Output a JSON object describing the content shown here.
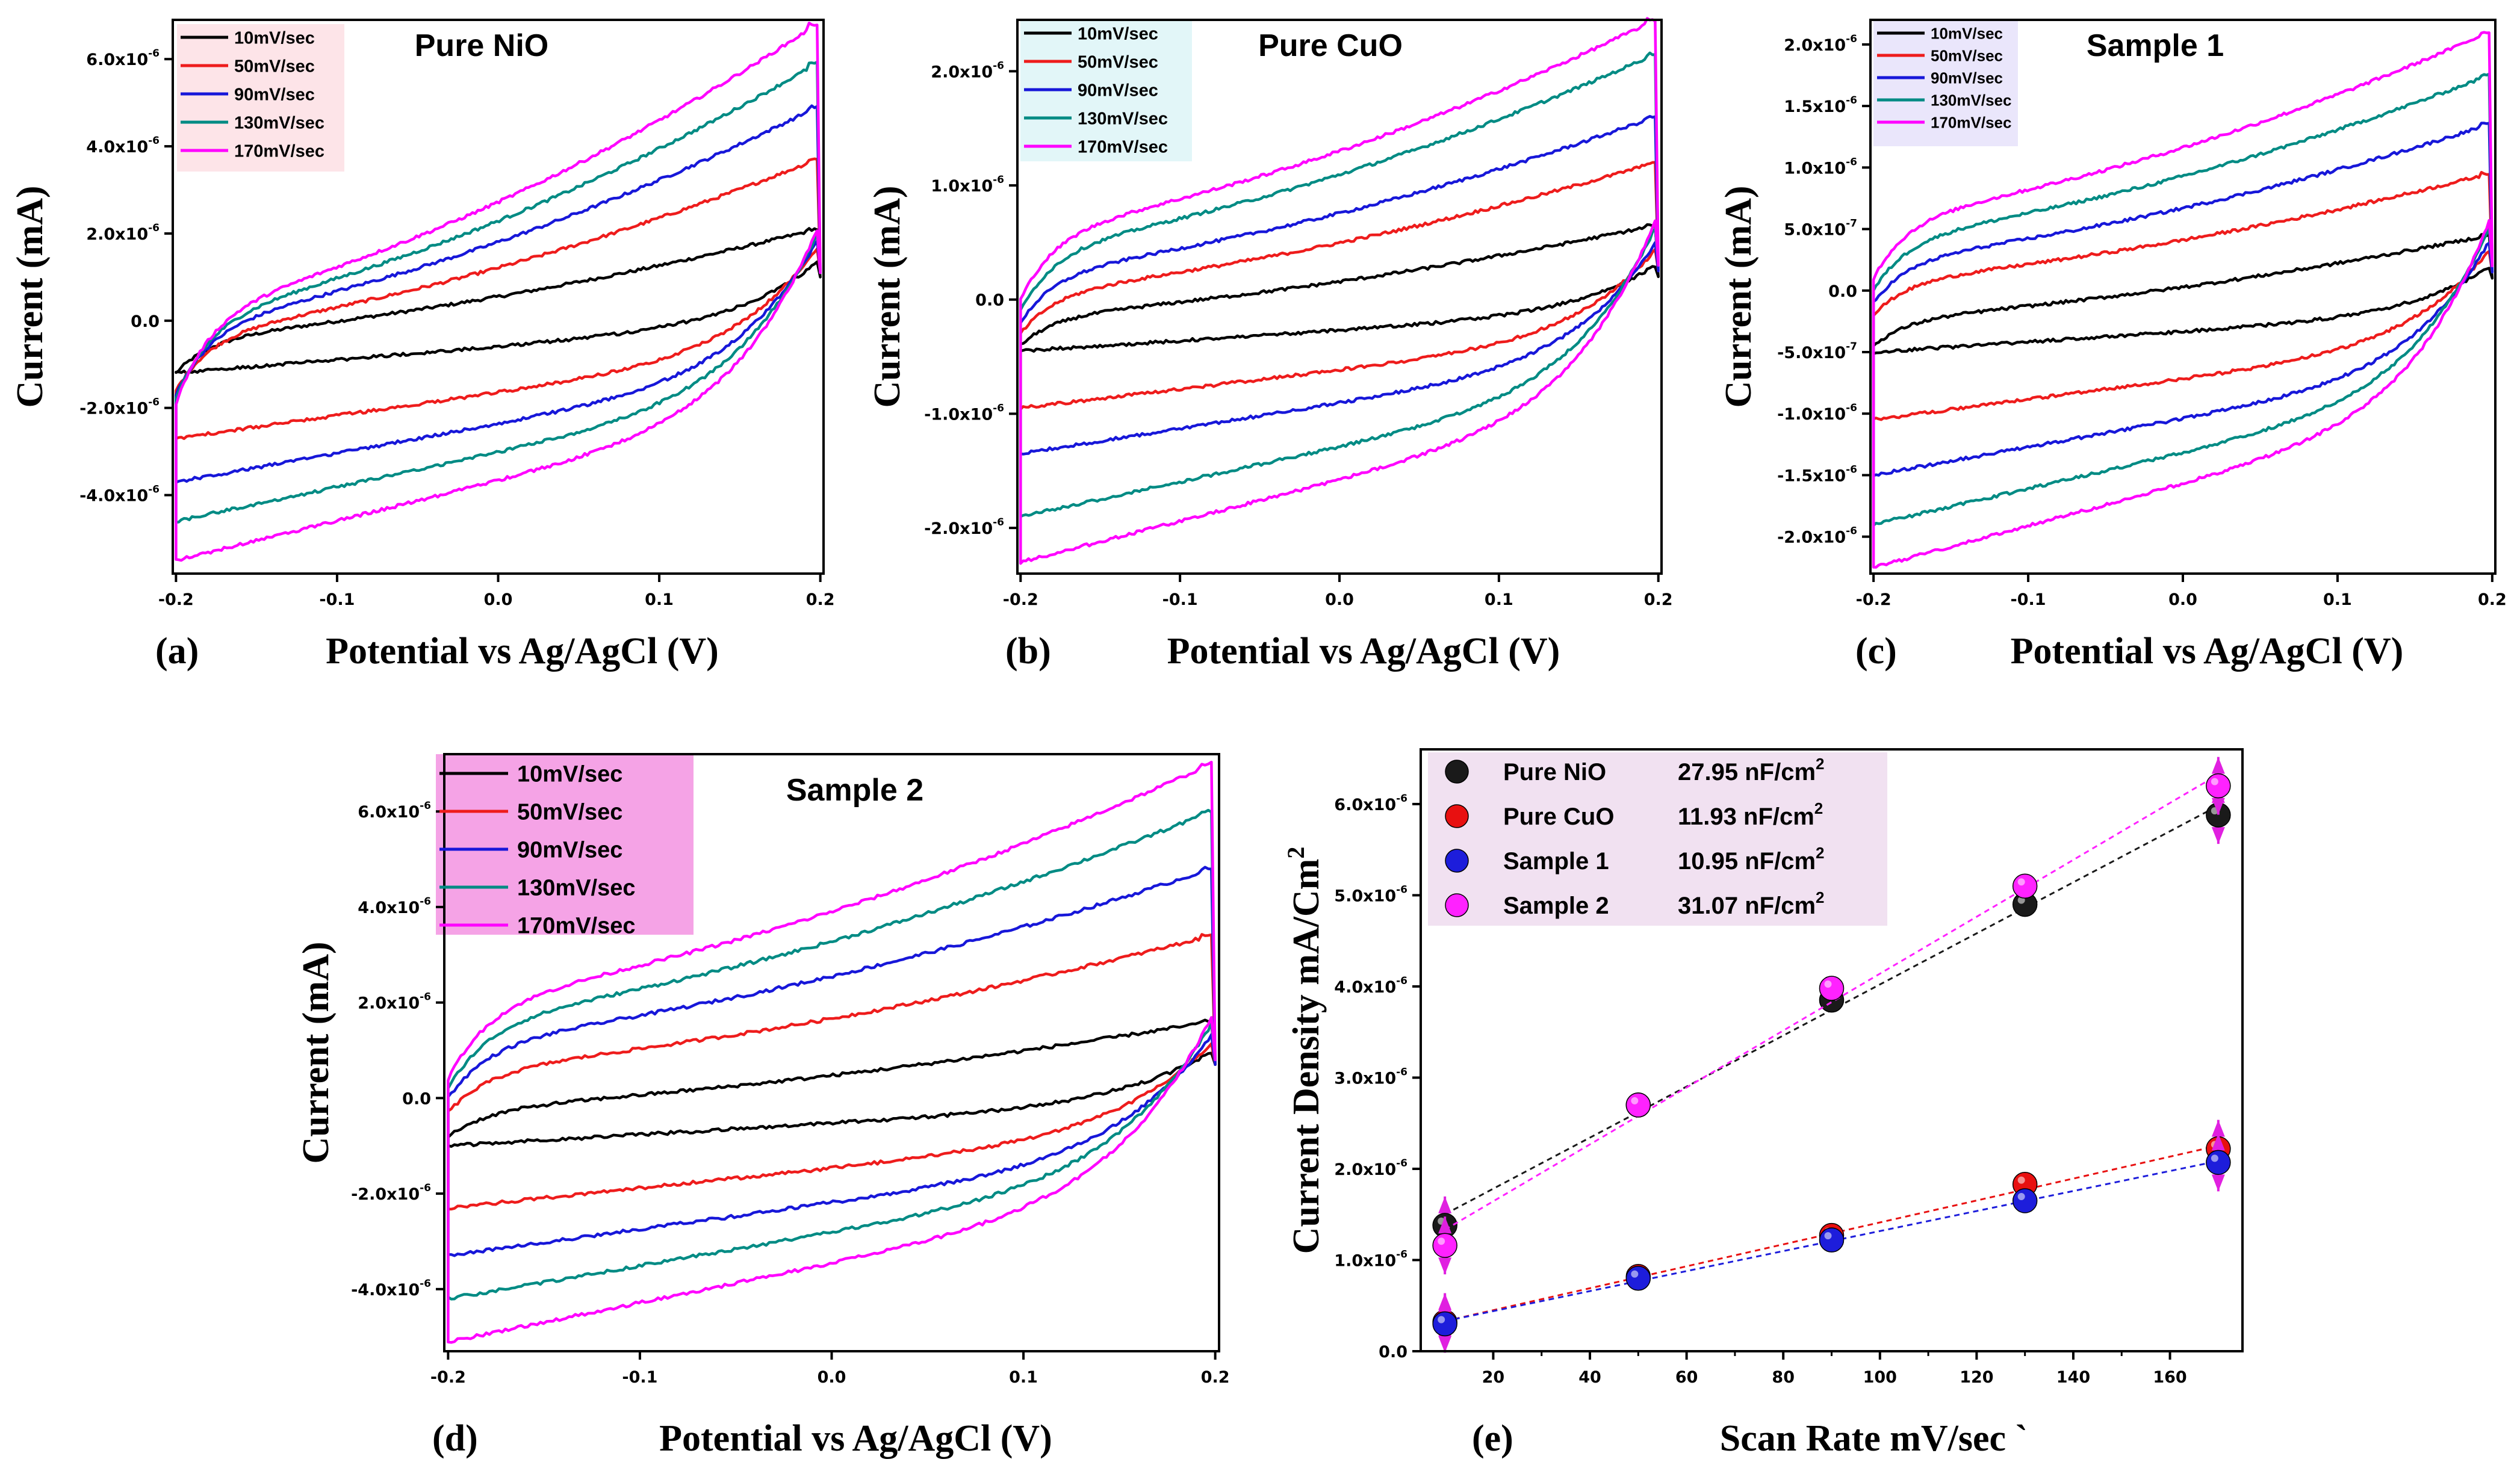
{
  "chart_data": [
    {
      "panel": "(a)",
      "type": "line",
      "title": "Pure NiO",
      "xlabel": "Potential vs Ag/AgCl (V)",
      "ylabel": "Current (mA)",
      "xlim": [
        -0.202,
        0.202
      ],
      "ylim": [
        -5.8e-06,
        6.9e-06
      ],
      "x_ticks": [
        "-0.2",
        "-0.1",
        "0.0",
        "0.1",
        "0.2"
      ],
      "y_ticks": [
        {
          "m": "-4.0x10",
          "e": "-6",
          "v": -4e-06
        },
        {
          "m": "-2.0x10",
          "e": "-6",
          "v": -2e-06
        },
        {
          "m": "0.0",
          "e": "",
          "v": 0
        },
        {
          "m": "2.0x10",
          "e": "-6",
          "v": 2e-06
        },
        {
          "m": "4.0x10",
          "e": "-6",
          "v": 4e-06
        },
        {
          "m": "6.0x10",
          "e": "-6",
          "v": 6e-06
        }
      ],
      "legend_bg": "#fde4e8",
      "series": [
        {
          "name": "10mV/sec",
          "color": "#000000",
          "upper_start": -1.2e-06,
          "upper_end": 2.1e-06,
          "lower_start": -1.2e-06,
          "lower_end": 1e-06
        },
        {
          "name": "50mV/sec",
          "color": "#ee1c1c",
          "upper_start": -1.6e-06,
          "upper_end": 3.7e-06,
          "lower_start": -2.7e-06,
          "lower_end": 1.1e-06
        },
        {
          "name": "90mV/sec",
          "color": "#1717d9",
          "upper_start": -1.7e-06,
          "upper_end": 4.9e-06,
          "lower_start": -3.7e-06,
          "lower_end": 1.1e-06
        },
        {
          "name": "130mV/sec",
          "color": "#008b84",
          "upper_start": -1.8e-06,
          "upper_end": 5.9e-06,
          "lower_start": -4.6e-06,
          "lower_end": 1.1e-06
        },
        {
          "name": "170mV/sec",
          "color": "#ff00ff",
          "upper_start": -1.9e-06,
          "upper_end": 6.8e-06,
          "lower_start": -5.5e-06,
          "lower_end": 1.1e-06
        }
      ]
    },
    {
      "panel": "(b)",
      "type": "line",
      "title": "Pure CuO",
      "xlabel": "Potential vs Ag/AgCl (V)",
      "ylabel": "Current (mA)",
      "xlim": [
        -0.202,
        0.202
      ],
      "ylim": [
        -2.4e-06,
        2.45e-06
      ],
      "x_ticks": [
        "-0.2",
        "-0.1",
        "0.0",
        "0.1",
        "0.2"
      ],
      "y_ticks": [
        {
          "m": "-2.0x10",
          "e": "-6",
          "v": -2e-06
        },
        {
          "m": "-1.0x10",
          "e": "-6",
          "v": -1e-06
        },
        {
          "m": "0.0",
          "e": "",
          "v": 0
        },
        {
          "m": "1.0x10",
          "e": "-6",
          "v": 1e-06
        },
        {
          "m": "2.0x10",
          "e": "-6",
          "v": 2e-06
        }
      ],
      "legend_bg": "#e2f6f8",
      "series": [
        {
          "name": "10mV/sec",
          "color": "#000000",
          "upper_start": -4e-07,
          "upper_end": 6.5e-07,
          "lower_start": -4.5e-07,
          "lower_end": 2e-07
        },
        {
          "name": "50mV/sec",
          "color": "#ee1c1c",
          "upper_start": -3e-07,
          "upper_end": 1.2e-06,
          "lower_start": -9.5e-07,
          "lower_end": 2.5e-07
        },
        {
          "name": "90mV/sec",
          "color": "#1717d9",
          "upper_start": -2e-07,
          "upper_end": 1.6e-06,
          "lower_start": -1.35e-06,
          "lower_end": 2.5e-07
        },
        {
          "name": "130mV/sec",
          "color": "#008b84",
          "upper_start": -1e-07,
          "upper_end": 2.15e-06,
          "lower_start": -1.9e-06,
          "lower_end": 3e-07
        },
        {
          "name": "170mV/sec",
          "color": "#ff00ff",
          "upper_start": 0.0,
          "upper_end": 2.45e-06,
          "lower_start": -2.3e-06,
          "lower_end": 3e-07
        }
      ]
    },
    {
      "panel": "(c)",
      "type": "line",
      "title": "Sample 1",
      "xlabel": "Potential vs Ag/AgCl (V)",
      "ylabel": "Current (mA)",
      "xlim": [
        -0.202,
        0.202
      ],
      "ylim": [
        -2.3e-06,
        2.2e-06
      ],
      "x_ticks": [
        "-0.2",
        "-0.1",
        "0.0",
        "0.1",
        "0.2"
      ],
      "y_ticks": [
        {
          "m": "-2.0x10",
          "e": "-6",
          "v": -2e-06
        },
        {
          "m": "-1.5x10",
          "e": "-6",
          "v": -1.5e-06
        },
        {
          "m": "-1.0x10",
          "e": "-6",
          "v": -1e-06
        },
        {
          "m": "-5.0x10",
          "e": "-7",
          "v": -5e-07
        },
        {
          "m": "0.0",
          "e": "",
          "v": 0
        },
        {
          "m": "5.0x10",
          "e": "-7",
          "v": 5e-07
        },
        {
          "m": "1.0x10",
          "e": "-6",
          "v": 1e-06
        },
        {
          "m": "1.5x10",
          "e": "-6",
          "v": 1.5e-06
        },
        {
          "m": "2.0x10",
          "e": "-6",
          "v": 2e-06
        }
      ],
      "legend_bg": "#eae6fb",
      "series": [
        {
          "name": "10mV/sec",
          "color": "#000000",
          "upper_start": -4.5e-07,
          "upper_end": 4.5e-07,
          "lower_start": -5e-07,
          "lower_end": 1e-07
        },
        {
          "name": "50mV/sec",
          "color": "#ee1c1c",
          "upper_start": -2e-07,
          "upper_end": 9.5e-07,
          "lower_start": -1.05e-06,
          "lower_end": 1.5e-07
        },
        {
          "name": "90mV/sec",
          "color": "#1717d9",
          "upper_start": -1e-07,
          "upper_end": 1.35e-06,
          "lower_start": -1.5e-06,
          "lower_end": 1.5e-07
        },
        {
          "name": "130mV/sec",
          "color": "#008b84",
          "upper_start": 0.0,
          "upper_end": 1.75e-06,
          "lower_start": -1.9e-06,
          "lower_end": 2e-07
        },
        {
          "name": "170mV/sec",
          "color": "#ff00ff",
          "upper_start": 1e-07,
          "upper_end": 2.1e-06,
          "lower_start": -2.25e-06,
          "lower_end": 2e-07
        }
      ]
    },
    {
      "panel": "(d)",
      "type": "line",
      "title": "Sample 2",
      "xlabel": "Potential vs Ag/AgCl (V)",
      "ylabel": "Current (mA)",
      "xlim": [
        -0.202,
        0.202
      ],
      "ylim": [
        -5.3e-06,
        7.2e-06
      ],
      "x_ticks": [
        "-0.2",
        "-0.1",
        "0.0",
        "0.1",
        "0.2"
      ],
      "y_ticks": [
        {
          "m": "-4.0x10",
          "e": "-6",
          "v": -4e-06
        },
        {
          "m": "-2.0x10",
          "e": "-6",
          "v": -2e-06
        },
        {
          "m": "0.0",
          "e": "",
          "v": 0
        },
        {
          "m": "2.0x10",
          "e": "-6",
          "v": 2e-06
        },
        {
          "m": "4.0x10",
          "e": "-6",
          "v": 4e-06
        },
        {
          "m": "6.0x10",
          "e": "-6",
          "v": 6e-06
        }
      ],
      "legend_bg": "#f5a3e6",
      "series": [
        {
          "name": "10mV/sec",
          "color": "#000000",
          "upper_start": -8e-07,
          "upper_end": 1.6e-06,
          "lower_start": -1e-06,
          "lower_end": 7e-07
        },
        {
          "name": "50mV/sec",
          "color": "#ee1c1c",
          "upper_start": -3e-07,
          "upper_end": 3.4e-06,
          "lower_start": -2.3e-06,
          "lower_end": 7e-07
        },
        {
          "name": "90mV/sec",
          "color": "#1717d9",
          "upper_start": 0.0,
          "upper_end": 4.8e-06,
          "lower_start": -3.3e-06,
          "lower_end": 7e-07
        },
        {
          "name": "130mV/sec",
          "color": "#008b84",
          "upper_start": 2e-07,
          "upper_end": 6e-06,
          "lower_start": -4.2e-06,
          "lower_end": 8e-07
        },
        {
          "name": "170mV/sec",
          "color": "#ff00ff",
          "upper_start": 4e-07,
          "upper_end": 7e-06,
          "lower_start": -5.1e-06,
          "lower_end": 8e-07
        }
      ]
    },
    {
      "panel": "(e)",
      "type": "scatter",
      "title": "",
      "xlabel": "Scan Rate mV/sec `",
      "ylabel": "Current Density mA/Cm",
      "ylabel_sup": "2",
      "xlim": [
        5,
        175
      ],
      "ylim": [
        0,
        6.6e-06
      ],
      "x_ticks": [
        "20",
        "40",
        "60",
        "80",
        "100",
        "120",
        "140",
        "160"
      ],
      "y_ticks": [
        {
          "m": "0.0",
          "e": "",
          "v": 0
        },
        {
          "m": "1.0x10",
          "e": "-6",
          "v": 1e-06
        },
        {
          "m": "2.0x10",
          "e": "-6",
          "v": 2e-06
        },
        {
          "m": "3.0x10",
          "e": "-6",
          "v": 3e-06
        },
        {
          "m": "4.0x10",
          "e": "-6",
          "v": 4e-06
        },
        {
          "m": "5.0x10",
          "e": "-6",
          "v": 5e-06
        },
        {
          "m": "6.0x10",
          "e": "-6",
          "v": 6e-06
        }
      ],
      "legend_bg": "#f1e1f1",
      "x": [
        10,
        50,
        90,
        130,
        170
      ],
      "series": [
        {
          "name": "Pure NiO",
          "value_text": "27.95 nF/cm",
          "unit_sup": "2",
          "color": "#1a1a1a",
          "values": [
            1.38e-06,
            2.7e-06,
            3.85e-06,
            4.9e-06,
            5.88e-06
          ]
        },
        {
          "name": "Pure CuO",
          "value_text": "11.93 nF/cm",
          "unit_sup": "2",
          "color": "#e81010",
          "values": [
            3.2e-07,
            8.2e-07,
            1.27e-06,
            1.83e-06,
            2.22e-06
          ]
        },
        {
          "name": "Sample 1",
          "value_text": "10.95 nF/cm",
          "unit_sup": "2",
          "color": "#1d1ddb",
          "values": [
            3e-07,
            8e-07,
            1.22e-06,
            1.65e-06,
            2.07e-06
          ]
        },
        {
          "name": "Sample 2",
          "value_text": "31.07 nF/cm",
          "unit_sup": "2",
          "color": "#ff22ff",
          "values": [
            1.16e-06,
            2.7e-06,
            3.98e-06,
            5.1e-06,
            6.2e-06
          ]
        }
      ]
    }
  ]
}
